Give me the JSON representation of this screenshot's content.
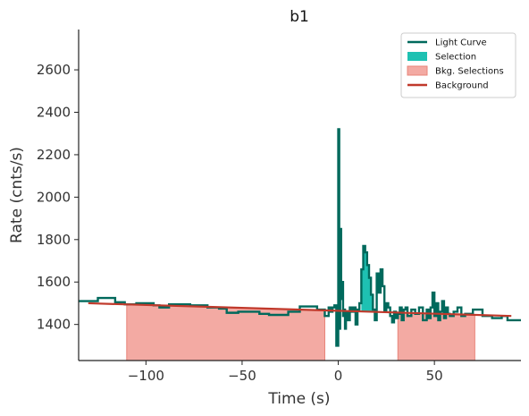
{
  "chart_data": {
    "type": "line",
    "title": "b1",
    "xlabel": "Time (s)",
    "ylabel": "Rate (cnts/s)",
    "xlim": [
      -135,
      95
    ],
    "ylim": [
      1230,
      2790
    ],
    "xticks": [
      -100,
      -50,
      0,
      50
    ],
    "xtick_labels": [
      "−100",
      "−50",
      "0",
      "50"
    ],
    "yticks": [
      1400,
      1600,
      1800,
      2000,
      2200,
      2400,
      2600
    ],
    "ytick_labels": [
      "1400",
      "1600",
      "1800",
      "2000",
      "2200",
      "2400",
      "2600"
    ],
    "legend_position": "top-right",
    "colors": {
      "light_curve": "#00695c",
      "selection": "#1ec1b2",
      "bkg_selection_fill": "#f3aaa3",
      "bkg_selection_edge": "#e8847a",
      "background": "#c0392b",
      "axis": "#222222"
    },
    "legend": [
      {
        "label": "Light Curve",
        "kind": "line",
        "color_key": "light_curve"
      },
      {
        "label": "Selection",
        "kind": "patch",
        "color_key": "selection"
      },
      {
        "label": "Bkg. Selections",
        "kind": "patch",
        "color_key": "bkg_selection_fill"
      },
      {
        "label": "Background",
        "kind": "line",
        "color_key": "background"
      }
    ],
    "background_line": {
      "x": [
        -130,
        90
      ],
      "y": [
        1500,
        1440
      ]
    },
    "bkg_selections": [
      [
        -110,
        -7
      ],
      [
        31,
        71
      ]
    ],
    "selection": [
      12,
      20
    ],
    "light_curve": {
      "x": [
        -135,
        -125,
        -116,
        -111,
        -105,
        -96,
        -93,
        -88,
        -83,
        -77,
        -68,
        -62,
        -58,
        -52,
        -41,
        -36,
        -26,
        -20,
        -11,
        -7,
        -5,
        -4,
        -3,
        -2,
        -1,
        0,
        0.5,
        1,
        1.5,
        2,
        2.5,
        3,
        3.5,
        4,
        5,
        6,
        7,
        8,
        9,
        10,
        11,
        12,
        13,
        14,
        15,
        16,
        17,
        18,
        19,
        20,
        21,
        22,
        23,
        24,
        25,
        26,
        27,
        28,
        29,
        30,
        31,
        32,
        33,
        34,
        35,
        36,
        38,
        40,
        42,
        44,
        46,
        47,
        48,
        49,
        50,
        51,
        52,
        53,
        54,
        55,
        56,
        57,
        58,
        60,
        62,
        64,
        66,
        70,
        75,
        80,
        85,
        88,
        95
      ],
      "y": [
        1510,
        1525,
        1505,
        1495,
        1500,
        1490,
        1480,
        1495,
        1495,
        1490,
        1480,
        1475,
        1455,
        1460,
        1450,
        1445,
        1460,
        1485,
        1470,
        1440,
        1480,
        1460,
        1480,
        1490,
        1300,
        2320,
        1380,
        1850,
        1520,
        1600,
        1440,
        1470,
        1380,
        1460,
        1420,
        1480,
        1460,
        1480,
        1400,
        1470,
        1500,
        1660,
        1770,
        1740,
        1680,
        1620,
        1540,
        1470,
        1420,
        1640,
        1550,
        1660,
        1580,
        1460,
        1500,
        1480,
        1440,
        1410,
        1460,
        1430,
        1450,
        1480,
        1420,
        1470,
        1480,
        1440,
        1470,
        1450,
        1480,
        1420,
        1470,
        1430,
        1480,
        1550,
        1440,
        1500,
        1420,
        1460,
        1510,
        1430,
        1480,
        1450,
        1440,
        1460,
        1480,
        1440,
        1450,
        1470,
        1440,
        1430,
        1440,
        1420,
        1420
      ]
    }
  }
}
